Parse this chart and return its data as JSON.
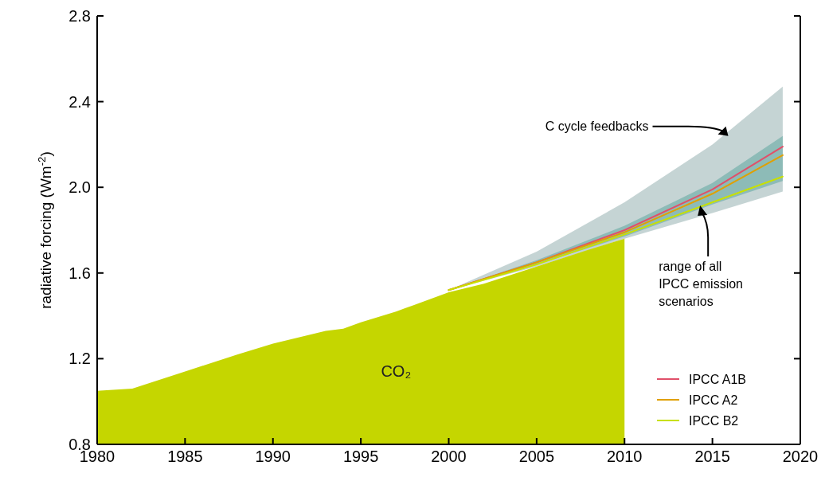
{
  "chart_data": {
    "type": "line",
    "ylabel": "radiative forcing (Wm$^{-2}$)",
    "xlim": [
      1980,
      2020
    ],
    "ylim": [
      0.8,
      2.8
    ],
    "xticks": [
      1980,
      1985,
      1990,
      1995,
      2000,
      2005,
      2010,
      2015,
      2020
    ],
    "yticks": [
      0.8,
      1.2,
      1.6,
      {
        "value": 2,
        "label": "2.0"
      },
      2.4,
      2.8
    ],
    "grid": false,
    "legend": "bottom right",
    "series": [
      {
        "name": "CO₂",
        "type": "area",
        "color": "#c5d600",
        "x": [
          1980,
          1982,
          1985,
          1988,
          1990,
          1993,
          1994,
          1995,
          1997,
          1998,
          2000,
          2002,
          2005,
          2008,
          2010
        ],
        "values": [
          1.05,
          1.06,
          1.14,
          1.22,
          1.27,
          1.33,
          1.34,
          1.37,
          1.42,
          1.45,
          1.51,
          1.55,
          1.63,
          1.71,
          1.76
        ]
      },
      {
        "name": "IPCC A1B",
        "color": "#e0506a",
        "x": [
          2000,
          2005,
          2010,
          2015,
          2019
        ],
        "values": [
          1.52,
          1.65,
          1.8,
          1.99,
          2.19
        ],
        "lower": [
          1.52,
          1.63,
          1.76,
          1.88,
          1.98
        ],
        "upper": [
          1.52,
          1.7,
          1.93,
          2.2,
          2.47
        ]
      },
      {
        "name": "IPCC A2",
        "color": "#e0a000",
        "x": [
          2000,
          2005,
          2010,
          2015,
          2019
        ],
        "values": [
          1.52,
          1.65,
          1.79,
          1.97,
          2.15
        ],
        "lower": [
          1.52,
          1.64,
          1.77,
          1.92,
          2.03
        ],
        "upper": [
          1.52,
          1.66,
          1.82,
          2.02,
          2.24
        ]
      },
      {
        "name": "IPCC B2",
        "color": "#c8e000",
        "x": [
          2000,
          2005,
          2010,
          2015,
          2019
        ],
        "values": [
          1.52,
          1.64,
          1.78,
          1.93,
          2.05
        ]
      }
    ],
    "annotations": [
      {
        "text": "C cycle feedbacks",
        "x": 2015.9,
        "y": 2.24
      },
      {
        "text": "range of all IPCC emission scenarios",
        "x": 2014.3,
        "y": 1.915
      }
    ]
  }
}
